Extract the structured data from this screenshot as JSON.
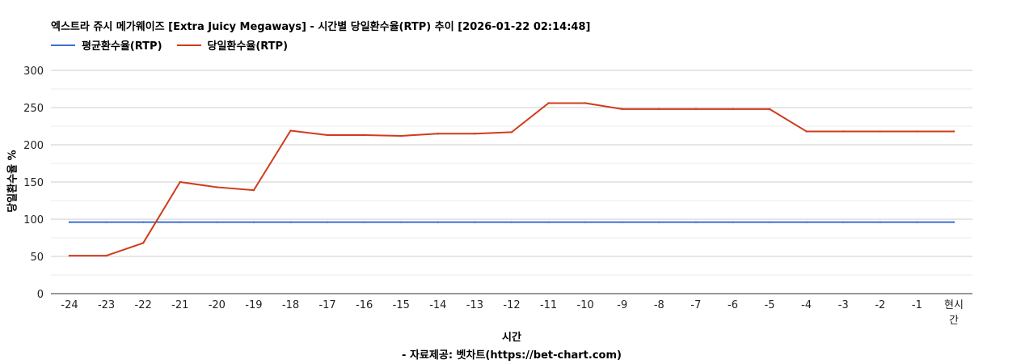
{
  "chart_data": {
    "type": "line",
    "title": "엑스트라 쥬시 메가웨이즈 [Extra Juicy Megaways] - 시간별 당일환수율(RTP) 추이 [2026-01-22 02:14:48]",
    "xlabel": "시간",
    "ylabel": "당일환수율 %",
    "source": "- 자료제공: 벳차트(https://bet-chart.com)",
    "categories": [
      "-24",
      "-23",
      "-22",
      "-21",
      "-20",
      "-19",
      "-18",
      "-17",
      "-16",
      "-15",
      "-14",
      "-13",
      "-12",
      "-11",
      "-10",
      "-9",
      "-8",
      "-7",
      "-6",
      "-5",
      "-4",
      "-3",
      "-2",
      "-1",
      "현시간"
    ],
    "yticks": [
      "0",
      "50",
      "100",
      "150",
      "200",
      "250",
      "300"
    ],
    "ylim": [
      0,
      300
    ],
    "grid": true,
    "legend_position": "top-left",
    "series": [
      {
        "name": "평균환수율(RTP)",
        "color": "#3c6fd1",
        "values": [
          96,
          96,
          96,
          96,
          96,
          96,
          96,
          96,
          96,
          96,
          96,
          96,
          96,
          96,
          96,
          96,
          96,
          96,
          96,
          96,
          96,
          96,
          96,
          96,
          96
        ]
      },
      {
        "name": "당일환수율(RTP)",
        "color": "#d13b1a",
        "values": [
          51,
          51,
          68,
          150,
          143,
          139,
          219,
          213,
          213,
          212,
          215,
          215,
          217,
          256,
          256,
          248,
          248,
          248,
          248,
          248,
          218,
          218,
          218,
          218,
          218
        ]
      }
    ]
  }
}
